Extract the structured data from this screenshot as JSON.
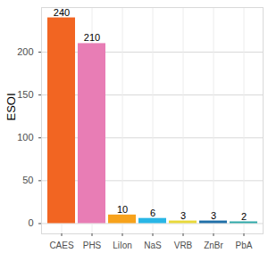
{
  "chart_data": {
    "type": "bar",
    "y_label": "ESOI",
    "categories": [
      "CAES",
      "PHS",
      "LiIon",
      "NaS",
      "VRB",
      "ZnBr",
      "PbA"
    ],
    "values": [
      240,
      210,
      10,
      6,
      3,
      3,
      2
    ],
    "colors": [
      "#f26522",
      "#e87db5",
      "#f7a21b",
      "#29b6e6",
      "#e8d93a",
      "#1f6fa8",
      "#2ba8a8"
    ],
    "ylim": [
      -12,
      252
    ],
    "yticks": [
      0,
      50,
      100,
      150,
      200
    ],
    "grid": true,
    "data_labels": true
  }
}
